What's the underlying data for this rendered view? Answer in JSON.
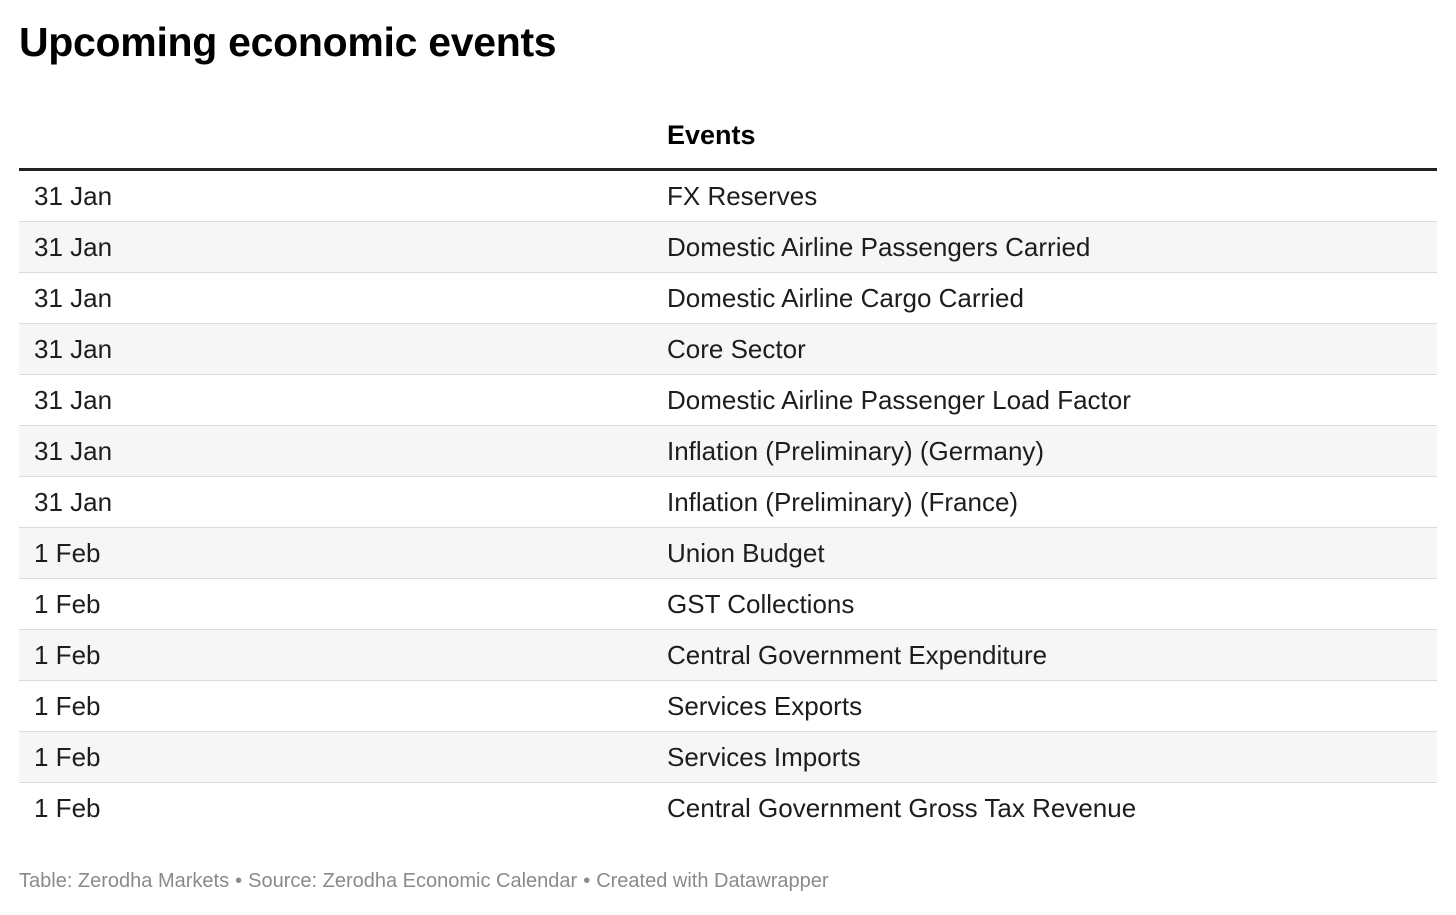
{
  "title": "Upcoming economic events",
  "table": {
    "columns": [
      "",
      "Events"
    ],
    "rows": [
      {
        "date": "31 Jan",
        "event": "FX Reserves"
      },
      {
        "date": "31 Jan",
        "event": "Domestic Airline Passengers Carried"
      },
      {
        "date": "31 Jan",
        "event": "Domestic Airline Cargo Carried"
      },
      {
        "date": "31 Jan",
        "event": "Core Sector"
      },
      {
        "date": "31 Jan",
        "event": "Domestic Airline Passenger Load Factor"
      },
      {
        "date": "31 Jan",
        "event": "Inflation (Preliminary) (Germany)"
      },
      {
        "date": "31 Jan",
        "event": "Inflation (Preliminary) (France)"
      },
      {
        "date": "1 Feb",
        "event": "Union Budget"
      },
      {
        "date": "1 Feb",
        "event": "GST Collections"
      },
      {
        "date": "1 Feb",
        "event": "Central Government Expenditure"
      },
      {
        "date": "1 Feb",
        "event": "Services Exports"
      },
      {
        "date": "1 Feb",
        "event": "Services Imports"
      },
      {
        "date": "1 Feb",
        "event": "Central Government Gross Tax Revenue"
      }
    ]
  },
  "footer": {
    "table_credit": "Table: Zerodha Markets",
    "source": "Source: Zerodha Economic Calendar",
    "created_with": "Created with Datawrapper",
    "separator": "•"
  },
  "colors": {
    "header_rule": "#222222",
    "row_alt": "#f6f6f6",
    "row_border": "#dcdcdc",
    "footer_text": "#8a8a8a"
  }
}
